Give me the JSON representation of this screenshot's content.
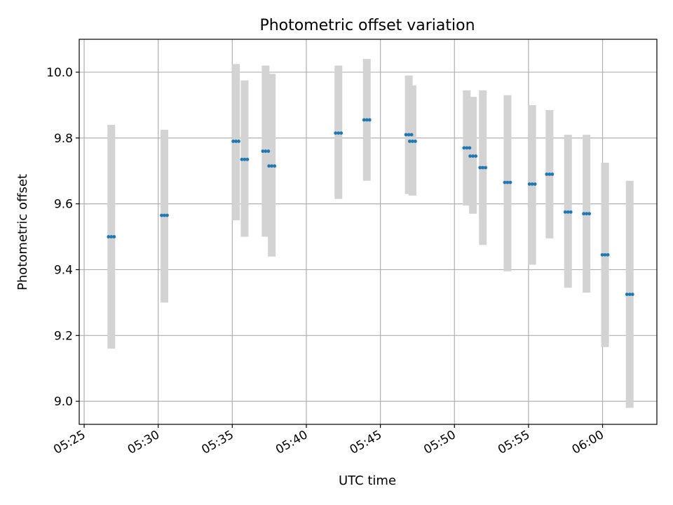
{
  "chart_data": {
    "type": "scatter",
    "title": "Photometric offset variation",
    "xlabel": "UTC time",
    "ylabel": "Photometric offset",
    "xlim": [
      "05:24:40",
      "06:03:40"
    ],
    "ylim": [
      8.93,
      10.1
    ],
    "x_ticks": [
      "05:25",
      "05:30",
      "05:35",
      "05:40",
      "05:45",
      "05:50",
      "05:55",
      "06:00"
    ],
    "y_ticks": [
      "9.0",
      "9.2",
      "9.4",
      "9.6",
      "9.8",
      "10.0"
    ],
    "grid": true,
    "series": [
      {
        "marker_color": "#1f77b4",
        "errorbar_color": "#d3d3d3",
        "points": [
          {
            "x": "05:26:50",
            "y": 9.5,
            "ylow": 9.16,
            "yhigh": 9.84
          },
          {
            "x": "05:30:25",
            "y": 9.565,
            "ylow": 9.3,
            "yhigh": 9.825
          },
          {
            "x": "05:35:15",
            "y": 9.79,
            "ylow": 9.55,
            "yhigh": 10.025
          },
          {
            "x": "05:35:50",
            "y": 9.735,
            "ylow": 9.5,
            "yhigh": 9.975
          },
          {
            "x": "05:37:15",
            "y": 9.76,
            "ylow": 9.5,
            "yhigh": 10.02
          },
          {
            "x": "05:37:40",
            "y": 9.715,
            "ylow": 9.44,
            "yhigh": 9.995
          },
          {
            "x": "05:42:10",
            "y": 9.815,
            "ylow": 9.615,
            "yhigh": 10.02
          },
          {
            "x": "05:44:05",
            "y": 9.855,
            "ylow": 9.67,
            "yhigh": 10.04
          },
          {
            "x": "05:46:55",
            "y": 9.81,
            "ylow": 9.63,
            "yhigh": 9.99
          },
          {
            "x": "05:47:10",
            "y": 9.79,
            "ylow": 9.625,
            "yhigh": 9.96
          },
          {
            "x": "05:50:50",
            "y": 9.77,
            "ylow": 9.595,
            "yhigh": 9.945
          },
          {
            "x": "05:51:15",
            "y": 9.745,
            "ylow": 9.57,
            "yhigh": 9.925
          },
          {
            "x": "05:51:55",
            "y": 9.71,
            "ylow": 9.475,
            "yhigh": 9.945
          },
          {
            "x": "05:53:35",
            "y": 9.665,
            "ylow": 9.395,
            "yhigh": 9.93
          },
          {
            "x": "05:55:15",
            "y": 9.66,
            "ylow": 9.415,
            "yhigh": 9.9
          },
          {
            "x": "05:56:25",
            "y": 9.69,
            "ylow": 9.495,
            "yhigh": 9.885
          },
          {
            "x": "05:57:40",
            "y": 9.575,
            "ylow": 9.345,
            "yhigh": 9.81
          },
          {
            "x": "05:58:55",
            "y": 9.57,
            "ylow": 9.33,
            "yhigh": 9.81
          },
          {
            "x": "06:00:10",
            "y": 9.445,
            "ylow": 9.165,
            "yhigh": 9.725
          },
          {
            "x": "06:01:50",
            "y": 9.325,
            "ylow": 8.98,
            "yhigh": 9.67
          }
        ]
      }
    ]
  }
}
